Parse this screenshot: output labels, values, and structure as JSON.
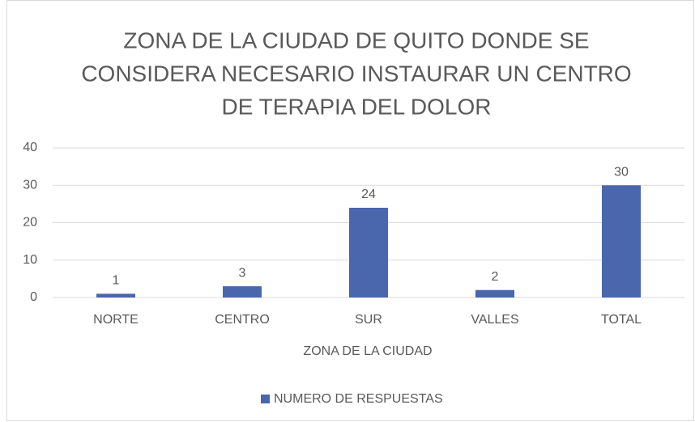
{
  "chart_data": {
    "type": "bar",
    "title": [
      "ZONA DE LA CIUDAD DE QUITO DONDE SE",
      "CONSIDERA NECESARIO INSTAURAR UN CENTRO",
      "DE TERAPIA DEL DOLOR"
    ],
    "x_label": "ZONA DE LA CIUDAD",
    "categories": [
      "NORTE",
      "CENTRO",
      "SUR",
      "VALLES",
      "TOTAL"
    ],
    "series": [
      {
        "name": "NUMERO DE RESPUESTAS",
        "color": "#4a66ac",
        "values": [
          1,
          3,
          24,
          2,
          30
        ]
      }
    ],
    "ylim": [
      0,
      40
    ],
    "yticks": [
      0,
      10,
      20,
      30,
      40
    ],
    "grid": true,
    "legend": "bottom"
  }
}
